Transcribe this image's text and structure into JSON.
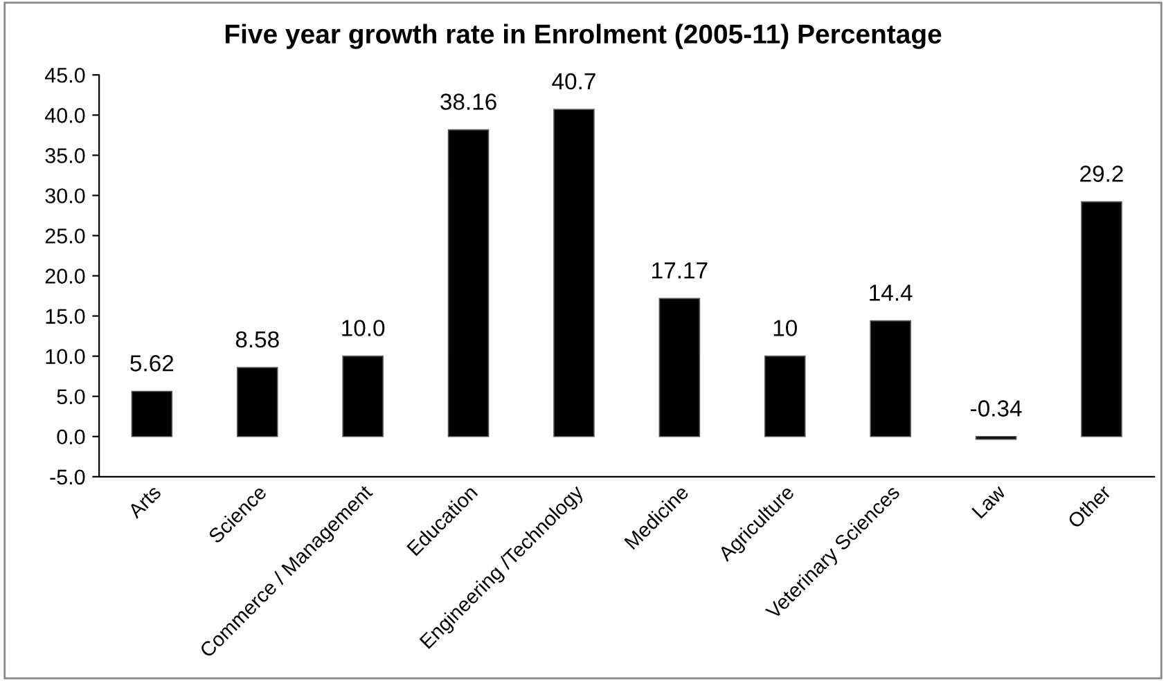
{
  "chart_data": {
    "type": "bar",
    "title": "Five year growth rate in Enrolment (2005-11) Percentage",
    "categories": [
      "Arts",
      "Science",
      "Commerce / Management",
      "Education",
      "Engineering /Technology",
      "Medicine",
      "Agriculture",
      "Veterinary Sciences",
      "Law",
      "Other"
    ],
    "values": [
      5.62,
      8.58,
      10.0,
      38.16,
      40.7,
      17.17,
      10,
      14.4,
      -0.34,
      29.2
    ],
    "value_labels": [
      "5.62",
      "8.58",
      "10.0",
      "38.16",
      "40.7",
      "17.17",
      "10",
      "14.4",
      "-0.34",
      "29.2"
    ],
    "color": "#000000",
    "ylim": [
      -5,
      45
    ],
    "yticks": [
      {
        "value": -5,
        "label": "-5.0"
      },
      {
        "value": 0,
        "label": "0.0"
      },
      {
        "value": 5,
        "label": "5.0"
      },
      {
        "value": 10,
        "label": "10.0"
      },
      {
        "value": 15,
        "label": "15.0"
      },
      {
        "value": 20,
        "label": "20.0"
      },
      {
        "value": 25,
        "label": "25.0"
      },
      {
        "value": 30,
        "label": "30.0"
      },
      {
        "value": 35,
        "label": "35.0"
      },
      {
        "value": 40,
        "label": "40.0"
      },
      {
        "value": 45,
        "label": "45.0"
      }
    ],
    "grid": false,
    "legend": false
  }
}
